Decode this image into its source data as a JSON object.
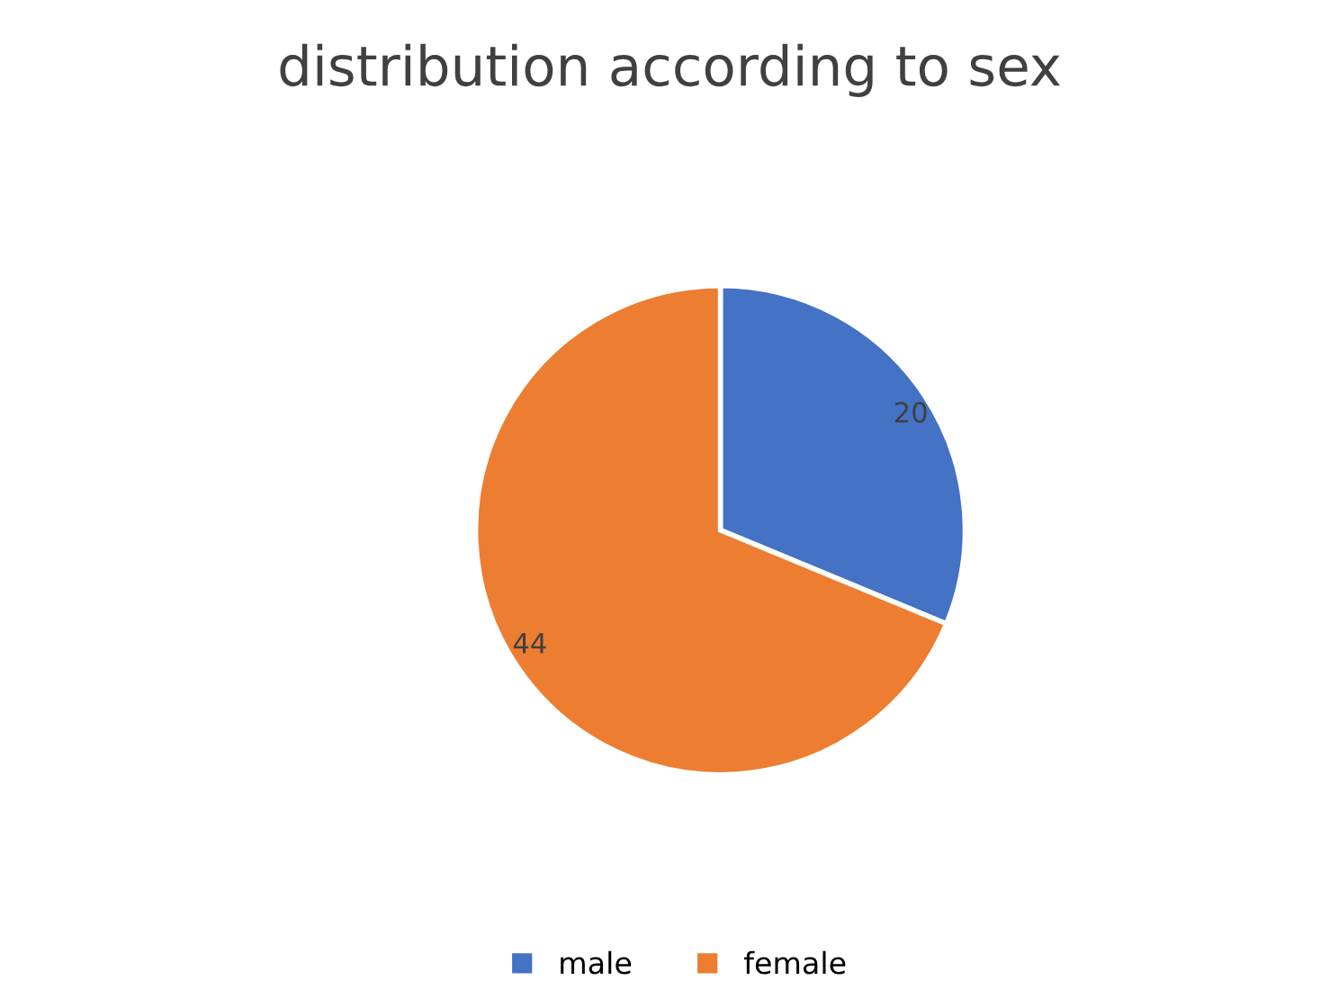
{
  "chart_data": {
    "type": "pie",
    "title": "distribution according to sex",
    "categories": [
      "male",
      "female"
    ],
    "values": [
      20,
      44
    ],
    "colors": [
      "#4472c4",
      "#ed7d31"
    ],
    "data_labels": true,
    "legend": "bottom"
  }
}
